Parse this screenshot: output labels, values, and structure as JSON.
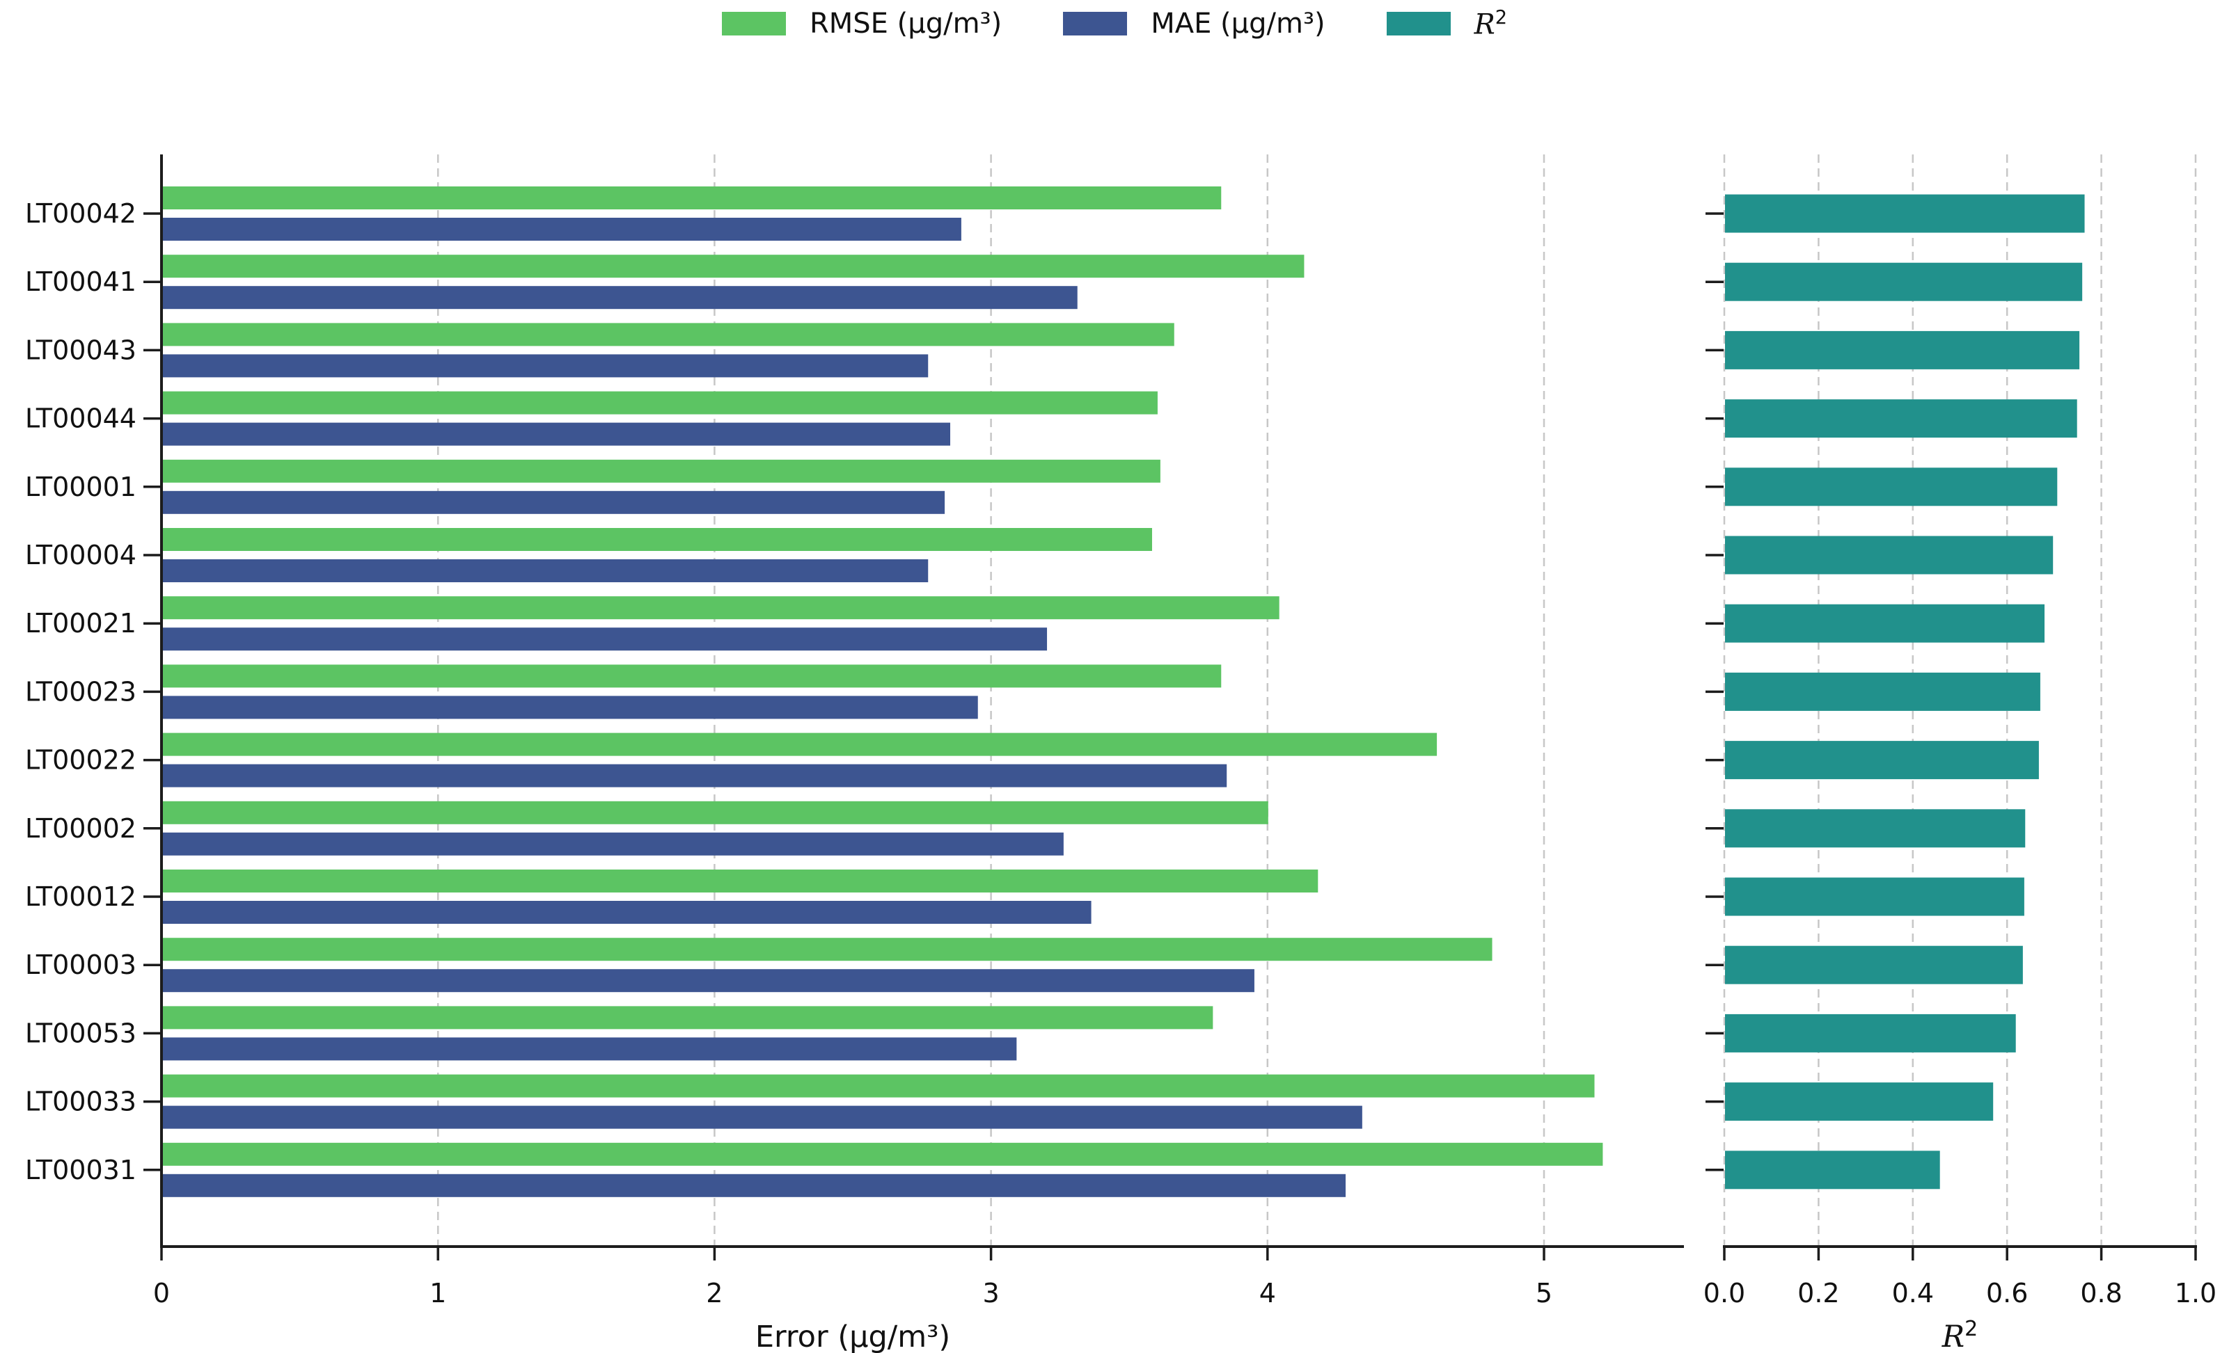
{
  "legend": {
    "items": [
      {
        "label": "RMSE (µg/m³)",
        "color": "#5cc463"
      },
      {
        "label": "MAE (µg/m³)",
        "color": "#3d5591"
      },
      {
        "label": "R²",
        "color": "#21918c"
      }
    ]
  },
  "chart_data": {
    "type": "bar",
    "orientation": "horizontal",
    "grid": true,
    "legend_position": "top-center",
    "categories": [
      "LT00042",
      "LT00041",
      "LT00043",
      "LT00044",
      "LT00001",
      "LT00004",
      "LT00021",
      "LT00023",
      "LT00022",
      "LT00002",
      "LT00012",
      "LT00003",
      "LT00053",
      "LT00033",
      "LT00031"
    ],
    "panels": [
      {
        "xlabel": "Error (µg/m³)",
        "xlim": [
          0,
          5.5
        ],
        "xticks": [
          "0",
          "1",
          "2",
          "3",
          "4",
          "5"
        ],
        "xtick_values": [
          0,
          1,
          2,
          3,
          4,
          5
        ],
        "series": [
          {
            "name": "RMSE (µg/m³)",
            "color": "#5cc463",
            "values": [
              3.83,
              4.13,
              3.66,
              3.6,
              3.61,
              3.58,
              4.04,
              3.83,
              4.61,
              4.0,
              4.18,
              4.81,
              3.8,
              5.18,
              5.21
            ]
          },
          {
            "name": "MAE (µg/m³)",
            "color": "#3d5591",
            "values": [
              2.89,
              3.31,
              2.77,
              2.85,
              2.83,
              2.77,
              3.2,
              2.95,
              3.85,
              3.26,
              3.36,
              3.95,
              3.09,
              4.34,
              4.28
            ]
          }
        ]
      },
      {
        "xlabel": "R²",
        "xlim": [
          0,
          1.04
        ],
        "xticks": [
          "0.0",
          "0.2",
          "0.4",
          "0.6",
          "0.8",
          "1.0"
        ],
        "xtick_values": [
          0,
          0.2,
          0.4,
          0.6,
          0.8,
          1.0
        ],
        "series": [
          {
            "name": "R²",
            "color": "#21918c",
            "values": [
              0.763,
              0.758,
              0.752,
              0.747,
              0.705,
              0.696,
              0.678,
              0.669,
              0.666,
              0.637,
              0.635,
              0.632,
              0.617,
              0.569,
              0.456
            ]
          }
        ]
      }
    ]
  }
}
